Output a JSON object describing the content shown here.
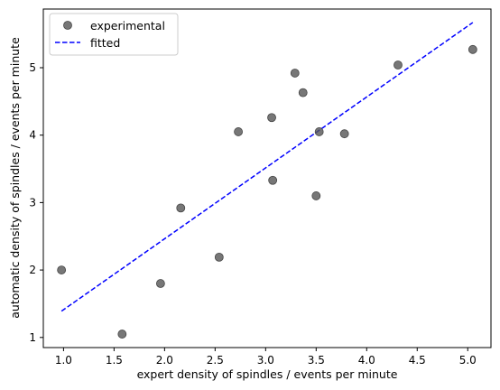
{
  "chart_data": {
    "type": "scatter",
    "title": "",
    "xlabel": "expert density of spindles / events per minute",
    "ylabel": "automatic density of spindles / events per minute",
    "xlim": [
      0.8,
      5.23
    ],
    "ylim": [
      0.85,
      5.87
    ],
    "xticks": [
      "1.0",
      "1.5",
      "2.0",
      "2.5",
      "3.0",
      "3.5",
      "4.0",
      "4.5",
      "5.0"
    ],
    "yticks": [
      "1",
      "2",
      "3",
      "4",
      "5"
    ],
    "grid": false,
    "legend_position": "top-left",
    "series": [
      {
        "name": "experimental",
        "style": "markers",
        "color": "#555555",
        "points": [
          {
            "x": 0.98,
            "y": 2.0
          },
          {
            "x": 1.58,
            "y": 1.05
          },
          {
            "x": 1.96,
            "y": 1.8
          },
          {
            "x": 2.16,
            "y": 2.92
          },
          {
            "x": 2.54,
            "y": 2.19
          },
          {
            "x": 2.73,
            "y": 4.05
          },
          {
            "x": 3.06,
            "y": 4.26
          },
          {
            "x": 3.07,
            "y": 3.33
          },
          {
            "x": 3.29,
            "y": 4.92
          },
          {
            "x": 3.37,
            "y": 4.63
          },
          {
            "x": 3.5,
            "y": 3.1
          },
          {
            "x": 3.53,
            "y": 4.05
          },
          {
            "x": 3.78,
            "y": 4.02
          },
          {
            "x": 4.31,
            "y": 5.04
          },
          {
            "x": 5.05,
            "y": 5.27
          }
        ]
      },
      {
        "name": "fitted",
        "style": "dashed-line",
        "color": "#0000ff",
        "points": [
          {
            "x": 0.98,
            "y": 1.39
          },
          {
            "x": 5.05,
            "y": 5.67
          }
        ]
      }
    ]
  }
}
